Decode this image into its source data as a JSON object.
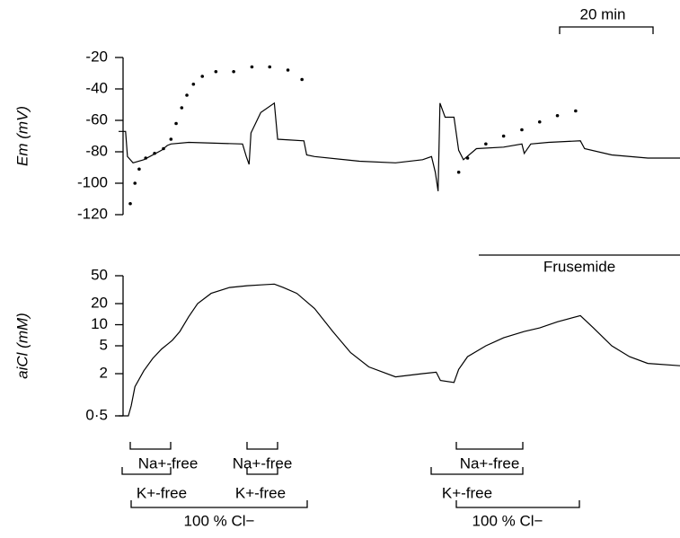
{
  "chart_data": [
    {
      "type": "line",
      "y_label": "Em (mV)",
      "xlim": [
        0,
        120
      ],
      "ylim": [
        -120,
        -20
      ],
      "yticks": [
        -120,
        -100,
        -80,
        -60,
        -40,
        -20
      ],
      "series": [
        {
          "style": "line",
          "color": "#000000",
          "x": [
            0,
            1.5,
            1.9,
            3.1,
            5.4,
            9.2,
            10.4,
            11.2,
            15,
            26.5,
            27.3,
            27.9,
            28.3,
            30.4,
            33.3,
            34,
            39.6,
            40.2,
            41.9,
            51.5,
            59.2,
            65,
            66.9,
            67.7,
            68.3,
            68.7,
            69.8,
            71.7,
            72.7,
            73.7,
            76.5,
            82.3,
            86.2,
            86.7,
            88.1,
            91.9,
            98.7,
            99.6,
            105.4,
            113.1,
            120
          ],
          "values": [
            -67,
            -67,
            -83,
            -87,
            -85,
            -79,
            -76,
            -75,
            -74,
            -75,
            -83,
            -88,
            -68,
            -55,
            -49,
            -72,
            -73,
            -82,
            -83,
            -86,
            -87,
            -85,
            -83,
            -93,
            -105,
            -49,
            -58,
            -58,
            -79,
            -85,
            -78,
            -77,
            -75,
            -81,
            -75,
            -74,
            -73,
            -78,
            -82,
            -84,
            -84
          ]
        },
        {
          "style": "dots",
          "color": "#000000",
          "x": [
            2.5,
            3.5,
            4.4,
            5.8,
            7.7,
            9.6,
            11.2,
            12.3,
            13.5,
            14.6,
            16,
            17.9,
            20.8,
            24.6,
            28.5,
            32.3,
            36.2,
            39.2,
            72.7,
            74.6,
            78.5,
            82.3,
            86.2,
            90,
            93.8,
            97.7
          ],
          "values": [
            -113,
            -100,
            -91,
            -84,
            -81,
            -78,
            -72,
            -62,
            -52,
            -44,
            -37,
            -32,
            -29,
            -29,
            -26,
            -26,
            -28,
            -34,
            -93,
            -84,
            -75,
            -70,
            -66,
            -61,
            -57,
            -54
          ]
        }
      ]
    },
    {
      "type": "line",
      "y_label": "aiCl (mM)",
      "log_scale": true,
      "xlim": [
        0,
        120
      ],
      "ylim": [
        0.5,
        50
      ],
      "yticks": [
        {
          "value": 0.5,
          "label": "0·5"
        },
        2,
        5,
        10,
        20,
        50
      ],
      "series": [
        {
          "style": "line",
          "color": "#000000",
          "x": [
            0,
            2.1,
            2.7,
            3.5,
            5.4,
            7.3,
            9.2,
            10.8,
            11.5,
            13.1,
            15,
            16.9,
            19.8,
            23.7,
            27.5,
            30.4,
            33.3,
            35.2,
            38.1,
            41.9,
            45.8,
            49.6,
            53.5,
            59.2,
            65,
            67.9,
            68.8,
            71.7,
            72.7,
            74.6,
            78.5,
            82.3,
            86.7,
            90,
            93.8,
            98.7,
            101.5,
            105.4,
            109.2,
            113.1,
            120
          ],
          "values": [
            0.5,
            0.5,
            0.7,
            1.3,
            2.2,
            3.3,
            4.5,
            5.5,
            6,
            8,
            13,
            20,
            28,
            34,
            36,
            37,
            38,
            34,
            28,
            17,
            8,
            4,
            2.5,
            1.8,
            2,
            2.1,
            1.6,
            1.5,
            2.3,
            3.5,
            5,
            6.5,
            8,
            9,
            11,
            13.5,
            9,
            5,
            3.5,
            2.8,
            2.6
          ]
        }
      ]
    }
  ],
  "annotations": [
    "20 min",
    "Frusemide",
    "Na+-free",
    "K+-free",
    "100 % Cl−",
    "Na+-free",
    "K+-free",
    "Na+-free",
    "K+-free",
    "100 % Cl−"
  ]
}
